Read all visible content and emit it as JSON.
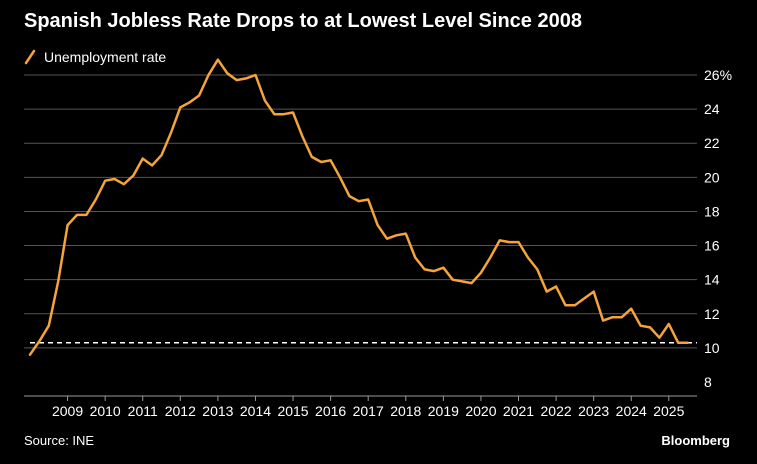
{
  "header": {
    "title": "Spanish Jobless Rate Drops to at Lowest Level Since 2008"
  },
  "footer": {
    "source": "Source: INE",
    "brand": "Bloomberg"
  },
  "colors": {
    "background": "#000000",
    "line": "#f5a33a",
    "grid": "#555555",
    "text": "#ffffff"
  },
  "chart_data": {
    "type": "line",
    "title": "Spanish Jobless Rate Drops to at Lowest Level Since 2008",
    "legend": [
      "Unemployment rate"
    ],
    "legend_position": "top-left",
    "y_axis_side": "right",
    "ylim": [
      8,
      26
    ],
    "yticks": [
      8,
      10,
      12,
      14,
      16,
      18,
      20,
      22,
      24,
      26
    ],
    "ytick_labels": [
      "8",
      "10",
      "12",
      "14",
      "16",
      "18",
      "20",
      "22",
      "24",
      "26%"
    ],
    "xlim": [
      2008.0,
      2025.75
    ],
    "xticks": [
      2009,
      2010,
      2011,
      2012,
      2013,
      2014,
      2015,
      2016,
      2017,
      2018,
      2019,
      2020,
      2021,
      2022,
      2023,
      2024,
      2025
    ],
    "xtick_labels": [
      "2009",
      "2010",
      "2011",
      "2012",
      "2013",
      "2014",
      "2015",
      "2016",
      "2017",
      "2018",
      "2019",
      "2020",
      "2021",
      "2022",
      "2023",
      "2024",
      "2025"
    ],
    "grid": true,
    "reference_line": {
      "value": 10.3,
      "style": "dashed"
    },
    "series": [
      {
        "name": "Unemployment rate",
        "x": [
          2008.0,
          2008.25,
          2008.5,
          2008.75,
          2009.0,
          2009.25,
          2009.5,
          2009.75,
          2010.0,
          2010.25,
          2010.5,
          2010.75,
          2011.0,
          2011.25,
          2011.5,
          2011.75,
          2012.0,
          2012.25,
          2012.5,
          2012.75,
          2013.0,
          2013.25,
          2013.5,
          2013.75,
          2014.0,
          2014.25,
          2014.5,
          2014.75,
          2015.0,
          2015.25,
          2015.5,
          2015.75,
          2016.0,
          2016.25,
          2016.5,
          2016.75,
          2017.0,
          2017.25,
          2017.5,
          2017.75,
          2018.0,
          2018.25,
          2018.5,
          2018.75,
          2019.0,
          2019.25,
          2019.5,
          2019.75,
          2020.0,
          2020.25,
          2020.5,
          2020.75,
          2021.0,
          2021.25,
          2021.5,
          2021.75,
          2022.0,
          2022.25,
          2022.5,
          2022.75,
          2023.0,
          2023.25,
          2023.5,
          2023.75,
          2024.0,
          2024.25,
          2024.5,
          2024.75,
          2025.0,
          2025.25,
          2025.5
        ],
        "values": [
          9.6,
          10.4,
          11.3,
          13.9,
          17.2,
          17.8,
          17.8,
          18.7,
          19.8,
          19.9,
          19.6,
          20.1,
          21.1,
          20.7,
          21.3,
          22.6,
          24.1,
          24.4,
          24.8,
          26.0,
          26.9,
          26.1,
          25.7,
          25.8,
          26.0,
          24.5,
          23.7,
          23.7,
          23.8,
          22.4,
          21.2,
          20.9,
          21.0,
          20.0,
          18.9,
          18.6,
          18.7,
          17.2,
          16.4,
          16.6,
          16.7,
          15.3,
          14.6,
          14.5,
          14.7,
          14.0,
          13.9,
          13.8,
          14.4,
          15.3,
          16.3,
          16.2,
          16.2,
          15.3,
          14.6,
          13.3,
          13.6,
          12.5,
          12.5,
          12.9,
          13.3,
          11.6,
          11.8,
          11.8,
          12.3,
          11.3,
          11.2,
          10.6,
          11.4,
          10.3,
          10.3
        ]
      }
    ]
  }
}
